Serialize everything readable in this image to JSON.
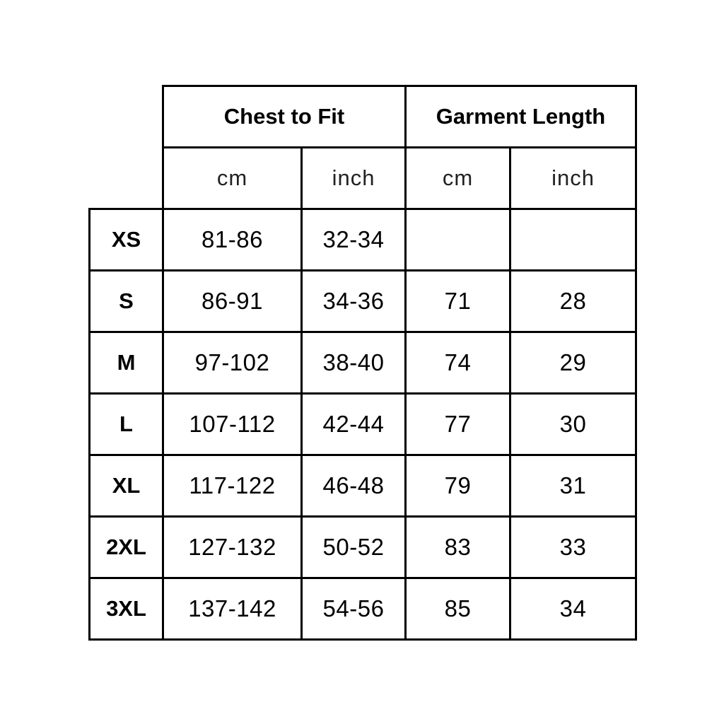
{
  "table": {
    "groups": [
      "Chest to Fit",
      "Garment Length"
    ],
    "units": [
      "cm",
      "inch",
      "cm",
      "inch"
    ],
    "rows": [
      {
        "size": "XS",
        "values": [
          "81-86",
          "32-34",
          "",
          ""
        ]
      },
      {
        "size": "S",
        "values": [
          "86-91",
          "34-36",
          "71",
          "28"
        ]
      },
      {
        "size": "M",
        "values": [
          "97-102",
          "38-40",
          "74",
          "29"
        ]
      },
      {
        "size": "L",
        "values": [
          "107-112",
          "42-44",
          "77",
          "30"
        ]
      },
      {
        "size": "XL",
        "values": [
          "117-122",
          "46-48",
          "79",
          "31"
        ]
      },
      {
        "size": "2XL",
        "values": [
          "127-132",
          "50-52",
          "83",
          "33"
        ]
      },
      {
        "size": "3XL",
        "values": [
          "137-142",
          "54-56",
          "85",
          "34"
        ]
      }
    ]
  }
}
